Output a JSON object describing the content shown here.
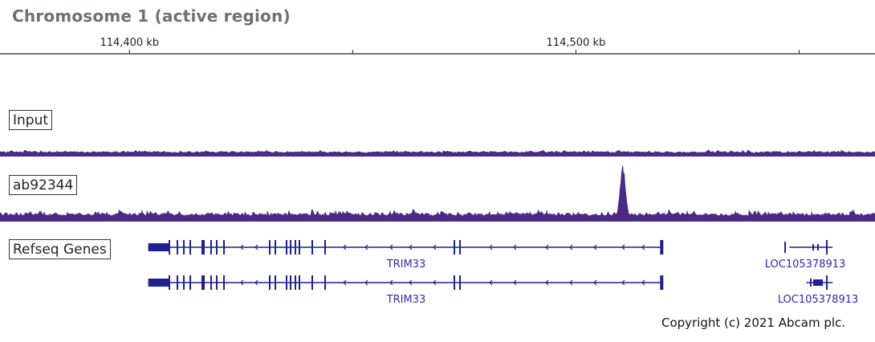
{
  "title": "Chromosome 1 (active region)",
  "copyright": "Copyright (c) 2021 Abcam plc.",
  "colors": {
    "signal": "#4b2a86",
    "gene": "#1f1f8f",
    "gene_label": "#2b2bb0",
    "title": "#6b7272"
  },
  "chart_data": {
    "type": "area",
    "title": "Chromosome 1 (active region)",
    "x_axis": {
      "unit": "kb",
      "range_kb": [
        114371,
        114567
      ],
      "tick_labels": [
        {
          "position_kb": 114400,
          "label": "114,400 kb"
        },
        {
          "position_kb": 114500,
          "label": "114,500 kb"
        }
      ],
      "minor_ticks_kb": [
        114450,
        114550
      ]
    },
    "tracks": [
      {
        "name": "Input",
        "kind": "signal",
        "baseline_level": 0.22,
        "noise": 0.35,
        "peaks": []
      },
      {
        "name": "ab92344",
        "kind": "signal",
        "baseline_level": 0.22,
        "noise": 0.45,
        "peaks": [
          {
            "position_kb": 114510.5,
            "height": 1.0,
            "width_kb": 1.2
          }
        ]
      }
    ],
    "genes": [
      {
        "name": "TRIM33",
        "strand": "-",
        "row": 0,
        "start_kb": 114404.2,
        "end_kb": 114519.4
      },
      {
        "name": "TRIM33",
        "strand": "-",
        "row": 1,
        "start_kb": 114404.2,
        "end_kb": 114519.4
      },
      {
        "name": "LOC105378913",
        "strand": "+",
        "row": 0,
        "start_kb": 114547.8,
        "end_kb": 114557.5
      },
      {
        "name": "LOC105378913",
        "strand": "+",
        "row": 1,
        "start_kb": 114551.6,
        "end_kb": 114557.5
      }
    ],
    "refseq_track_label": "Refseq Genes"
  }
}
